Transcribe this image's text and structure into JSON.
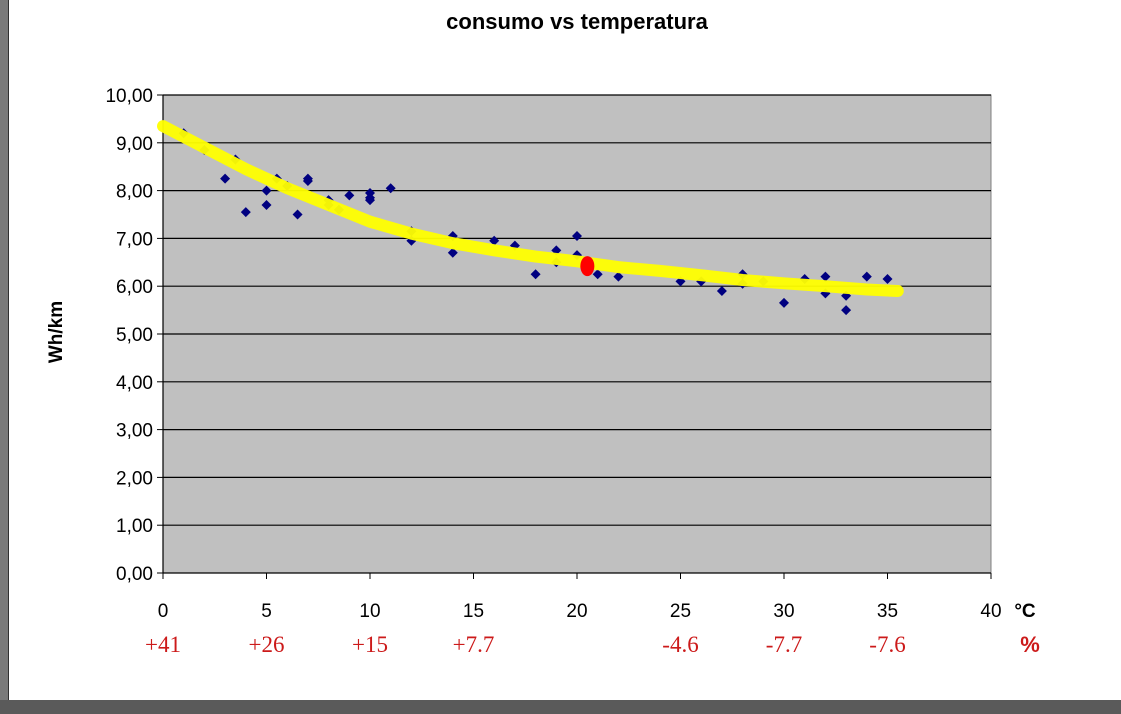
{
  "chart_data": {
    "type": "scatter",
    "title": "consumo vs temperatura",
    "ylabel": "Wh/km",
    "x_unit": "°C",
    "xlim": [
      0,
      40
    ],
    "ylim": [
      0,
      10
    ],
    "x_ticks": [
      "0",
      "5",
      "10",
      "15",
      "20",
      "25",
      "30",
      "35",
      "40"
    ],
    "y_ticks": [
      "0,00",
      "1,00",
      "2,00",
      "3,00",
      "4,00",
      "5,00",
      "6,00",
      "7,00",
      "8,00",
      "9,00",
      "10,00"
    ],
    "grid": "horizontal",
    "plot_background": "#c0c0c0",
    "series": [
      {
        "marker": "diamond",
        "color": "#000080",
        "points": [
          [
            1,
            9.2
          ],
          [
            2,
            8.85
          ],
          [
            3,
            8.25
          ],
          [
            3.5,
            8.65
          ],
          [
            4,
            7.55
          ],
          [
            5,
            8.0
          ],
          [
            5,
            7.7
          ],
          [
            5.5,
            8.25
          ],
          [
            6,
            8.1
          ],
          [
            6.5,
            7.5
          ],
          [
            7,
            8.25
          ],
          [
            7,
            8.2
          ],
          [
            8,
            7.8
          ],
          [
            8,
            7.7
          ],
          [
            8.5,
            7.6
          ],
          [
            9,
            7.9
          ],
          [
            10,
            7.95
          ],
          [
            10,
            7.85
          ],
          [
            10,
            7.8
          ],
          [
            11,
            8.05
          ],
          [
            12,
            7.15
          ],
          [
            12,
            6.95
          ],
          [
            14,
            7.05
          ],
          [
            14,
            6.7
          ],
          [
            16,
            6.95
          ],
          [
            17,
            6.85
          ],
          [
            18,
            6.25
          ],
          [
            19,
            6.75
          ],
          [
            19,
            6.5
          ],
          [
            20,
            7.05
          ],
          [
            20,
            6.65
          ],
          [
            21,
            6.25
          ],
          [
            22,
            6.2
          ],
          [
            25,
            6.1
          ],
          [
            26,
            6.1
          ],
          [
            27,
            5.9
          ],
          [
            28,
            6.25
          ],
          [
            28,
            6.05
          ],
          [
            29,
            6.1
          ],
          [
            30,
            5.65
          ],
          [
            31,
            6.15
          ],
          [
            32,
            6.2
          ],
          [
            32,
            5.85
          ],
          [
            33,
            5.8
          ],
          [
            33,
            5.5
          ],
          [
            34,
            6.2
          ],
          [
            35,
            6.15
          ]
        ]
      },
      {
        "type": "trendline",
        "color": "#ffff00",
        "points": [
          [
            0,
            9.35
          ],
          [
            2,
            8.9
          ],
          [
            4,
            8.45
          ],
          [
            6,
            8.05
          ],
          [
            8,
            7.7
          ],
          [
            10,
            7.35
          ],
          [
            12,
            7.1
          ],
          [
            14,
            6.9
          ],
          [
            16,
            6.75
          ],
          [
            18,
            6.62
          ],
          [
            20,
            6.52
          ],
          [
            22,
            6.4
          ],
          [
            24,
            6.32
          ],
          [
            26,
            6.23
          ],
          [
            28,
            6.13
          ],
          [
            30,
            6.06
          ],
          [
            32,
            6.0
          ],
          [
            34,
            5.93
          ],
          [
            35.5,
            5.9
          ]
        ]
      }
    ],
    "highlight_point": {
      "x": 20.5,
      "y": 6.42,
      "color": "#ff0000"
    },
    "percent_labels": [
      {
        "x": 0,
        "text": "+41"
      },
      {
        "x": 5,
        "text": "+26"
      },
      {
        "x": 10,
        "text": "+15"
      },
      {
        "x": 15,
        "text": "+7.7"
      },
      {
        "x": 25,
        "text": "-4.6"
      },
      {
        "x": 30,
        "text": "-7.7"
      },
      {
        "x": 35,
        "text": "-7.6"
      }
    ],
    "percent_unit": "%"
  }
}
